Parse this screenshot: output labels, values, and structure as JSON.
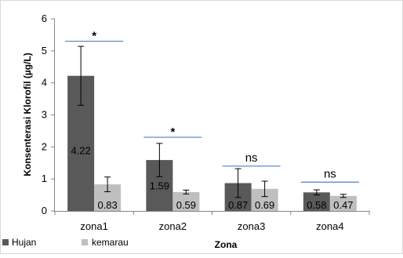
{
  "chart_data": {
    "type": "bar",
    "categories": [
      "zona1",
      "zona2",
      "zona3",
      "zona4"
    ],
    "series": [
      {
        "name": "Hujan",
        "color": "#595959",
        "values": [
          4.22,
          1.59,
          0.87,
          0.58
        ],
        "error": [
          0.92,
          0.52,
          0.45,
          0.08
        ],
        "labels": [
          "4.22",
          "1.59",
          "0.87",
          "0.58"
        ]
      },
      {
        "name": "kemarau",
        "color": "#bfbfbf",
        "values": [
          0.83,
          0.59,
          0.69,
          0.47
        ],
        "error": [
          0.23,
          0.06,
          0.24,
          0.05
        ],
        "labels": [
          "0.83",
          "0.59",
          "0.69",
          "0.47"
        ]
      }
    ],
    "significance": [
      {
        "category": "zona1",
        "label": "*",
        "y": 5.3
      },
      {
        "category": "zona2",
        "label": "*",
        "y": 2.3
      },
      {
        "category": "zona3",
        "label": "ns",
        "y": 1.4
      },
      {
        "category": "zona4",
        "label": "ns",
        "y": 0.9
      }
    ],
    "xlabel": "Zona",
    "ylabel": "Konsenterasi Klorofil (µg/L)",
    "ylim": [
      0,
      6
    ],
    "yticks": [
      "0",
      "1",
      "2",
      "3",
      "4",
      "5",
      "6"
    ],
    "grid": false,
    "legend_position": "bottom-left",
    "significance_line_color": "#4f81bd"
  }
}
